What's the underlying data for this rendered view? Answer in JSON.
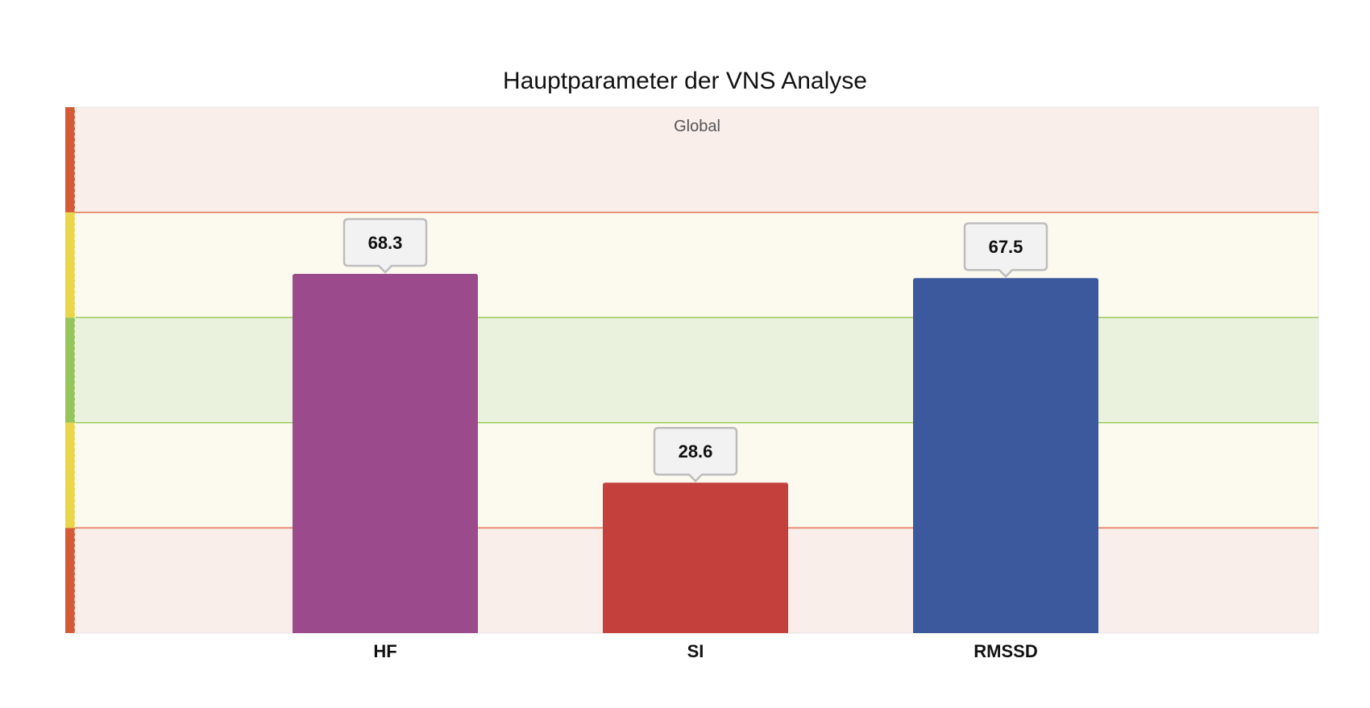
{
  "chart_data": {
    "type": "bar",
    "title": "Hauptparameter der VNS Analyse",
    "annotation": "Global",
    "categories": [
      "HF",
      "SI",
      "RMSSD"
    ],
    "values": [
      68.3,
      28.6,
      67.5
    ],
    "data_labels": [
      "68.3",
      "28.6",
      "67.5"
    ],
    "bar_colors": [
      "#9B4A8C",
      "#C4403D",
      "#3C599D"
    ],
    "ylim": [
      0,
      100
    ],
    "grid": false,
    "legend": "none",
    "zones": [
      {
        "from": 0,
        "to": 20,
        "color": "#F9EEEA",
        "side_color": "#D55B38"
      },
      {
        "from": 20,
        "to": 40,
        "color": "#FCFAEF",
        "side_color": "#EAD649"
      },
      {
        "from": 40,
        "to": 60,
        "color": "#EAF2DD",
        "side_color": "#96C55B"
      },
      {
        "from": 60,
        "to": 80,
        "color": "#FCFAEF",
        "side_color": "#EAD649"
      },
      {
        "from": 80,
        "to": 100,
        "color": "#F9EEEA",
        "side_color": "#D55B38"
      }
    ],
    "zone_lines": [
      {
        "at": 20,
        "color": "#E5714E"
      },
      {
        "at": 40,
        "color": "#9BC95A"
      },
      {
        "at": 60,
        "color": "#9BC95A"
      },
      {
        "at": 80,
        "color": "#E5714E"
      }
    ]
  }
}
